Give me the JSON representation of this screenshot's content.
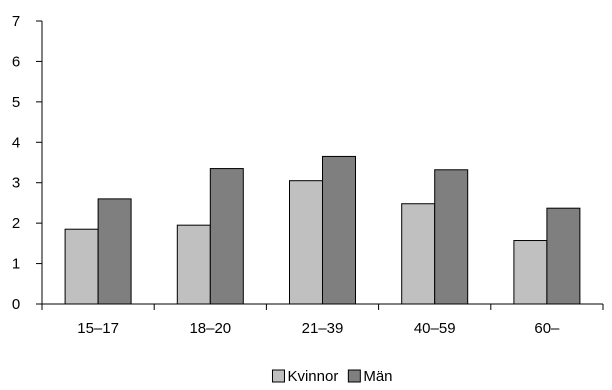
{
  "chart_data": {
    "type": "bar",
    "title": "",
    "xlabel": "",
    "ylabel": "",
    "categories": [
      "15–17",
      "18–20",
      "21–39",
      "40–59",
      "60–"
    ],
    "series": [
      {
        "name": "Kvinnor",
        "values": [
          1.85,
          1.95,
          3.05,
          2.48,
          1.57
        ],
        "color": "#c0c0c0"
      },
      {
        "name": "Män",
        "values": [
          2.6,
          3.35,
          3.65,
          3.32,
          2.37
        ],
        "color": "#7f7f7f"
      }
    ],
    "ylim": [
      0,
      7
    ],
    "yticks": [
      0,
      1,
      2,
      3,
      4,
      5,
      6,
      7
    ],
    "grid": false,
    "legend_position": "bottom-center"
  }
}
